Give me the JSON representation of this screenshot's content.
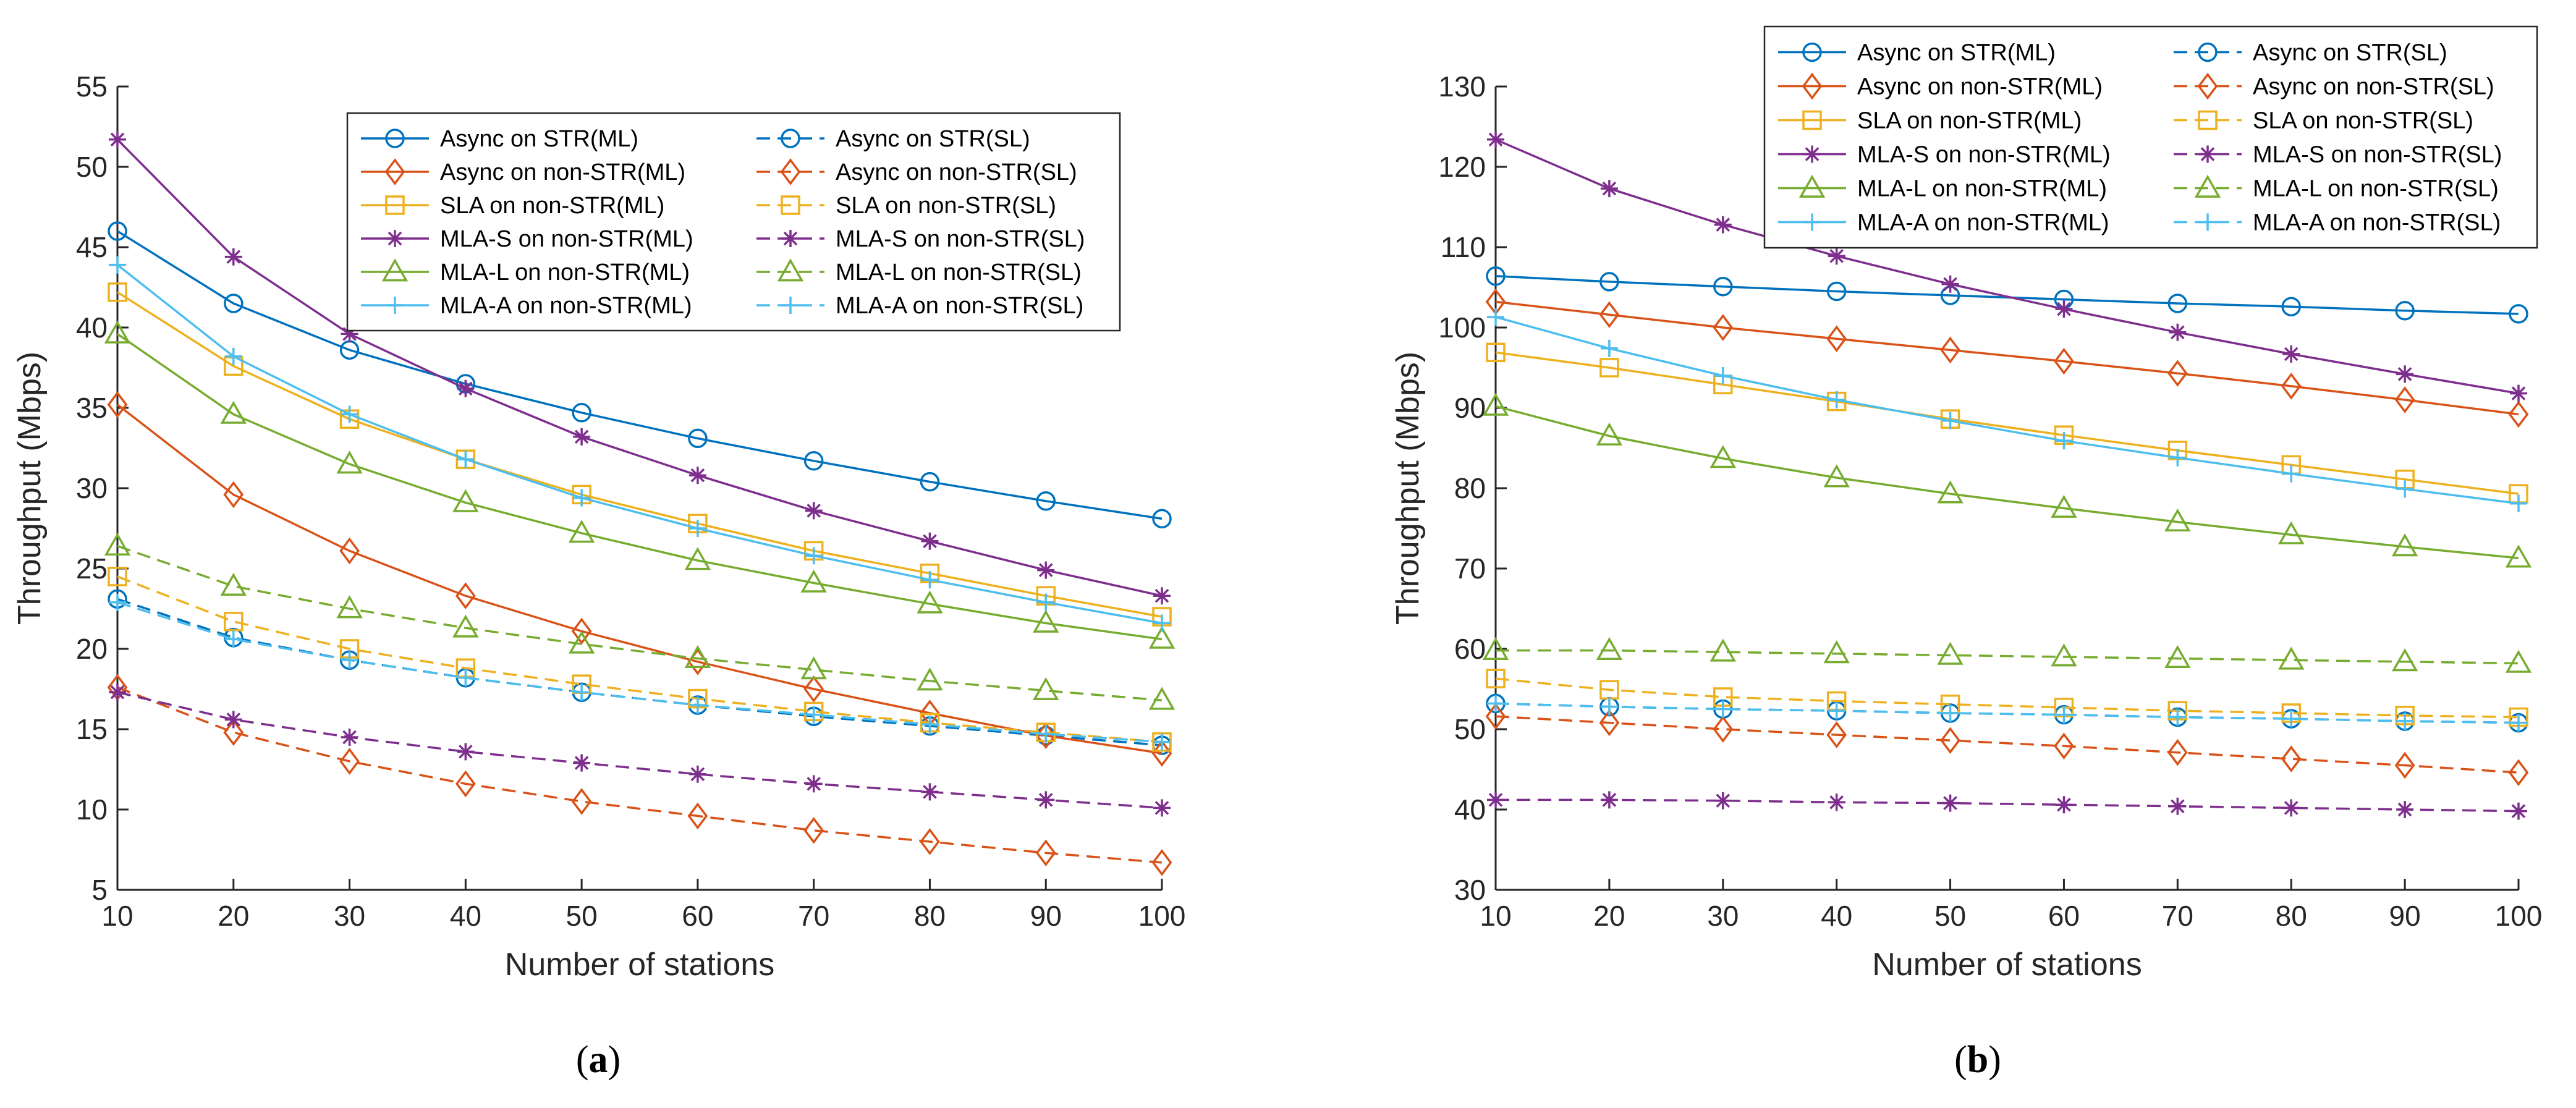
{
  "chart_data": [
    {
      "type": "line",
      "panel_label": "a",
      "xlabel": "Number of stations",
      "ylabel": "Throughput (Mbps)",
      "xlim": [
        10,
        100
      ],
      "ylim": [
        5,
        55
      ],
      "xticks": [
        10,
        20,
        30,
        40,
        50,
        60,
        70,
        80,
        90,
        100
      ],
      "yticks": [
        5,
        10,
        15,
        20,
        25,
        30,
        35,
        40,
        45,
        50,
        55
      ],
      "grid": false,
      "legend_position": "upper-right",
      "x": [
        10,
        20,
        30,
        40,
        50,
        60,
        70,
        80,
        90,
        100
      ],
      "series": [
        {
          "name": "Async on STR(ML)",
          "color": "#0072BD",
          "marker": "circle",
          "dash": "solid",
          "values": [
            46.0,
            41.5,
            38.6,
            36.5,
            34.7,
            33.1,
            31.7,
            30.4,
            29.2,
            28.1
          ]
        },
        {
          "name": "Async on STR(SL)",
          "color": "#0072BD",
          "marker": "circle",
          "dash": "dashed",
          "values": [
            23.1,
            20.7,
            19.3,
            18.2,
            17.3,
            16.5,
            15.8,
            15.2,
            14.6,
            14.0
          ]
        },
        {
          "name": "Async on non-STR(ML)",
          "color": "#D95319",
          "marker": "diamond",
          "dash": "solid",
          "values": [
            35.2,
            29.6,
            26.1,
            23.3,
            21.1,
            19.2,
            17.5,
            16.0,
            14.6,
            13.5
          ]
        },
        {
          "name": "Async on non-STR(SL)",
          "color": "#D95319",
          "marker": "diamond",
          "dash": "dashed",
          "values": [
            17.6,
            14.8,
            13.0,
            11.6,
            10.5,
            9.6,
            8.7,
            8.0,
            7.3,
            6.7
          ]
        },
        {
          "name": "SLA on non-STR(ML)",
          "color": "#EDB120",
          "marker": "square",
          "dash": "solid",
          "values": [
            42.2,
            37.6,
            34.3,
            31.8,
            29.6,
            27.8,
            26.1,
            24.7,
            23.3,
            22.0
          ]
        },
        {
          "name": "SLA on non-STR(SL)",
          "color": "#EDB120",
          "marker": "square",
          "dash": "dashed",
          "values": [
            24.5,
            21.7,
            20.0,
            18.8,
            17.8,
            16.9,
            16.1,
            15.4,
            14.8,
            14.2
          ]
        },
        {
          "name": "MLA-S on non-STR(ML)",
          "color": "#7E2F8E",
          "marker": "asterisk",
          "dash": "solid",
          "values": [
            51.7,
            44.4,
            39.6,
            36.2,
            33.2,
            30.8,
            28.6,
            26.7,
            24.9,
            23.3
          ]
        },
        {
          "name": "MLA-S on non-STR(SL)",
          "color": "#7E2F8E",
          "marker": "asterisk",
          "dash": "dashed",
          "values": [
            17.3,
            15.6,
            14.5,
            13.6,
            12.9,
            12.2,
            11.6,
            11.1,
            10.6,
            10.1
          ]
        },
        {
          "name": "MLA-L on non-STR(ML)",
          "color": "#77AC30",
          "marker": "triangle",
          "dash": "solid",
          "values": [
            39.6,
            34.6,
            31.5,
            29.1,
            27.2,
            25.5,
            24.1,
            22.8,
            21.6,
            20.6
          ]
        },
        {
          "name": "MLA-L on non-STR(SL)",
          "color": "#77AC30",
          "marker": "triangle",
          "dash": "dashed",
          "values": [
            26.4,
            23.9,
            22.5,
            21.3,
            20.3,
            19.4,
            18.7,
            18.0,
            17.4,
            16.8
          ]
        },
        {
          "name": "MLA-A on non-STR(ML)",
          "color": "#4DBEEE",
          "marker": "plus",
          "dash": "solid",
          "values": [
            43.9,
            38.2,
            34.6,
            31.8,
            29.4,
            27.5,
            25.8,
            24.3,
            22.9,
            21.6
          ]
        },
        {
          "name": "MLA-A on non-STR(SL)",
          "color": "#4DBEEE",
          "marker": "plus",
          "dash": "dashed",
          "values": [
            22.9,
            20.6,
            19.3,
            18.2,
            17.3,
            16.5,
            15.9,
            15.3,
            14.7,
            14.2
          ]
        }
      ]
    },
    {
      "type": "line",
      "panel_label": "b",
      "xlabel": "Number of stations",
      "ylabel": "Throughput (Mbps)",
      "xlim": [
        10,
        100
      ],
      "ylim": [
        30,
        130
      ],
      "xticks": [
        10,
        20,
        30,
        40,
        50,
        60,
        70,
        80,
        90,
        100
      ],
      "yticks": [
        30,
        40,
        50,
        60,
        70,
        80,
        90,
        100,
        110,
        120,
        130
      ],
      "grid": false,
      "legend_position": "top",
      "x": [
        10,
        20,
        30,
        40,
        50,
        60,
        70,
        80,
        90,
        100
      ],
      "series": [
        {
          "name": "Async on STR(ML)",
          "color": "#0072BD",
          "marker": "circle",
          "dash": "solid",
          "values": [
            106.4,
            105.7,
            105.1,
            104.5,
            104.0,
            103.5,
            103.0,
            102.6,
            102.1,
            101.7
          ]
        },
        {
          "name": "Async on STR(SL)",
          "color": "#0072BD",
          "marker": "circle",
          "dash": "dashed",
          "values": [
            53.2,
            52.8,
            52.5,
            52.3,
            52.0,
            51.8,
            51.5,
            51.3,
            51.0,
            50.8
          ]
        },
        {
          "name": "Async on non-STR(ML)",
          "color": "#D95319",
          "marker": "diamond",
          "dash": "solid",
          "values": [
            103.2,
            101.6,
            100.0,
            98.6,
            97.2,
            95.8,
            94.3,
            92.7,
            91.0,
            89.2
          ]
        },
        {
          "name": "Async on non-STR(SL)",
          "color": "#D95319",
          "marker": "diamond",
          "dash": "dashed",
          "values": [
            51.6,
            50.8,
            50.0,
            49.3,
            48.6,
            47.9,
            47.1,
            46.3,
            45.5,
            44.6
          ]
        },
        {
          "name": "SLA on non-STR(ML)",
          "color": "#EDB120",
          "marker": "square",
          "dash": "solid",
          "values": [
            96.9,
            95.0,
            92.9,
            90.8,
            88.6,
            86.6,
            84.7,
            82.9,
            81.1,
            79.3
          ]
        },
        {
          "name": "SLA on non-STR(SL)",
          "color": "#EDB120",
          "marker": "square",
          "dash": "dashed",
          "values": [
            56.3,
            54.9,
            54.0,
            53.5,
            53.1,
            52.7,
            52.3,
            52.0,
            51.7,
            51.5
          ]
        },
        {
          "name": "MLA-S on non-STR(ML)",
          "color": "#7E2F8E",
          "marker": "asterisk",
          "dash": "solid",
          "values": [
            123.4,
            117.3,
            112.8,
            108.9,
            105.4,
            102.3,
            99.4,
            96.7,
            94.2,
            91.8
          ]
        },
        {
          "name": "MLA-S on non-STR(SL)",
          "color": "#7E2F8E",
          "marker": "asterisk",
          "dash": "dashed",
          "values": [
            41.2,
            41.2,
            41.1,
            40.9,
            40.8,
            40.6,
            40.4,
            40.2,
            40.0,
            39.8
          ]
        },
        {
          "name": "MLA-L on non-STR(ML)",
          "color": "#77AC30",
          "marker": "triangle",
          "dash": "solid",
          "values": [
            90.2,
            86.5,
            83.7,
            81.3,
            79.3,
            77.5,
            75.8,
            74.2,
            72.7,
            71.3
          ]
        },
        {
          "name": "MLA-L on non-STR(SL)",
          "color": "#77AC30",
          "marker": "triangle",
          "dash": "dashed",
          "values": [
            59.8,
            59.8,
            59.6,
            59.4,
            59.2,
            59.0,
            58.8,
            58.6,
            58.4,
            58.2
          ]
        },
        {
          "name": "MLA-A on non-STR(ML)",
          "color": "#4DBEEE",
          "marker": "plus",
          "dash": "solid",
          "values": [
            101.3,
            97.4,
            94.0,
            91.0,
            88.4,
            85.9,
            83.8,
            81.8,
            79.9,
            78.1
          ]
        },
        {
          "name": "MLA-A on non-STR(SL)",
          "color": "#4DBEEE",
          "marker": "plus",
          "dash": "dashed",
          "values": [
            53.2,
            52.8,
            52.5,
            52.3,
            52.0,
            51.8,
            51.5,
            51.3,
            51.0,
            50.8
          ]
        }
      ]
    }
  ]
}
